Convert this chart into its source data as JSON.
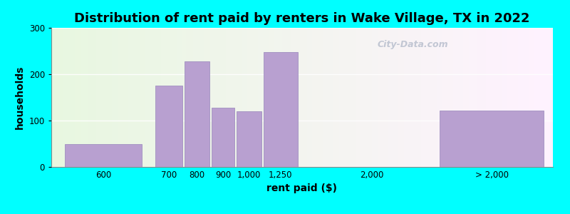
{
  "title": "Distribution of rent paid by renters in Wake Village, TX in 2022",
  "xlabel": "rent paid ($)",
  "ylabel": "households",
  "background_outer": "#00FFFF",
  "background_inner_gradient": true,
  "bar_color": "#b8a0d0",
  "bar_edge_color": "#a090c0",
  "ylim": [
    0,
    300
  ],
  "yticks": [
    0,
    100,
    200,
    300
  ],
  "categories": [
    "600",
    "700",
    "800",
    "900",
    "1,000",
    "1,250",
    "2,000",
    "> 2,000"
  ],
  "values": [
    50,
    175,
    228,
    128,
    120,
    248,
    0,
    122
  ],
  "title_fontsize": 13,
  "axis_label_fontsize": 10,
  "tick_fontsize": 8.5,
  "watermark_text": "City-Data.com"
}
